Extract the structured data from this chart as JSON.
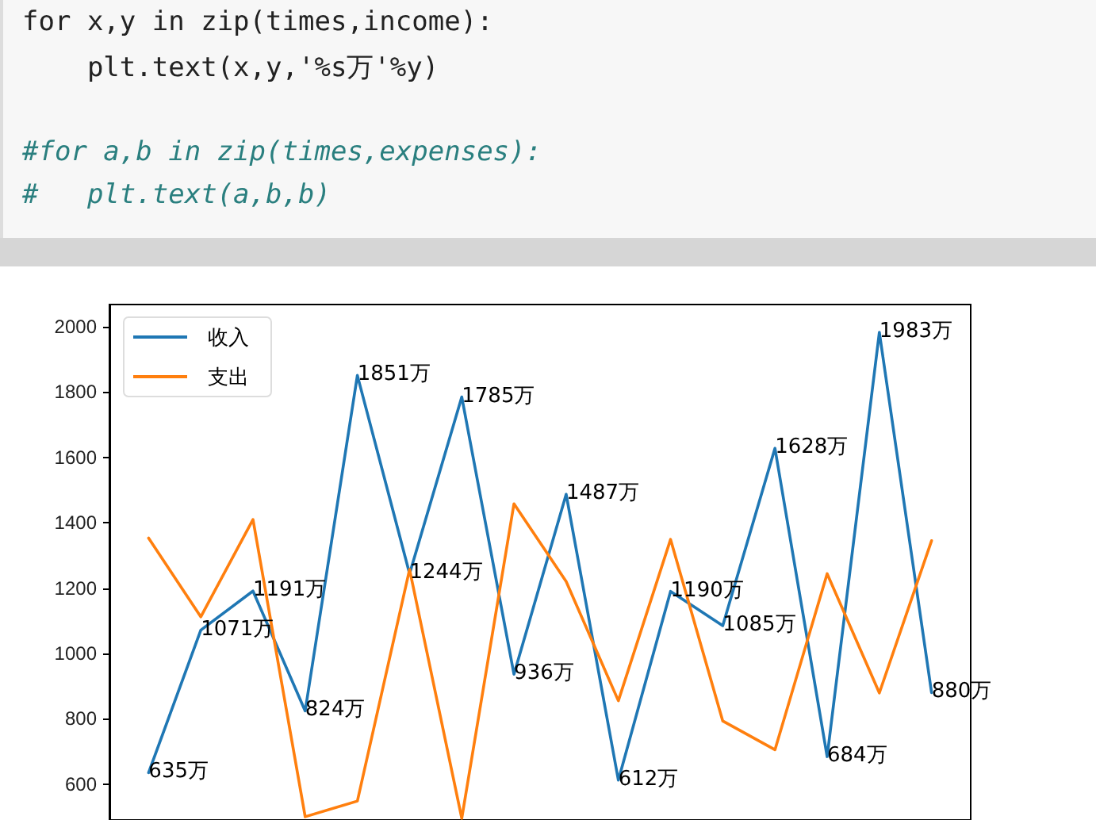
{
  "chart_data": {
    "type": "line",
    "annotations": [
      "for x,y in zip(times,income):",
      "    plt.text(x,y,'%s万'%y)",
      "#for a,b in zip(times,expenses):",
      "#   plt.text(a,b,b)"
    ],
    "categories": [
      null,
      null,
      null,
      null,
      null,
      null,
      null,
      null,
      null,
      null,
      null,
      null,
      null,
      null,
      null,
      null
    ],
    "series": [
      {
        "name": "收入",
        "color": "#1f77b4",
        "values": [
          635,
          1071,
          1191,
          824,
          1851,
          1244,
          1785,
          936,
          1487,
          612,
          1190,
          1085,
          1628,
          684,
          1983,
          880
        ],
        "value_labels": [
          "635万",
          "1071万",
          "1191万",
          "824万",
          "1851万",
          "1244万",
          "1785万",
          "936万",
          "1487万",
          "612万",
          "1190万",
          "1085万",
          "1628万",
          "684万",
          "1983万",
          "880万"
        ]
      },
      {
        "name": "支出",
        "color": "#ff7f0e",
        "values": [
          1353,
          1112,
          1410,
          500,
          548,
          1257,
          495,
          1458,
          1220,
          855,
          1349,
          793,
          705,
          1244,
          879,
          1345
        ]
      }
    ],
    "ylim": [
      490,
      2068
    ],
    "yticks": [
      600,
      800,
      1000,
      1200,
      1400,
      1600,
      1800,
      2000
    ],
    "grid": false,
    "legend": "top left",
    "marker": "none",
    "line_style": "solid"
  }
}
